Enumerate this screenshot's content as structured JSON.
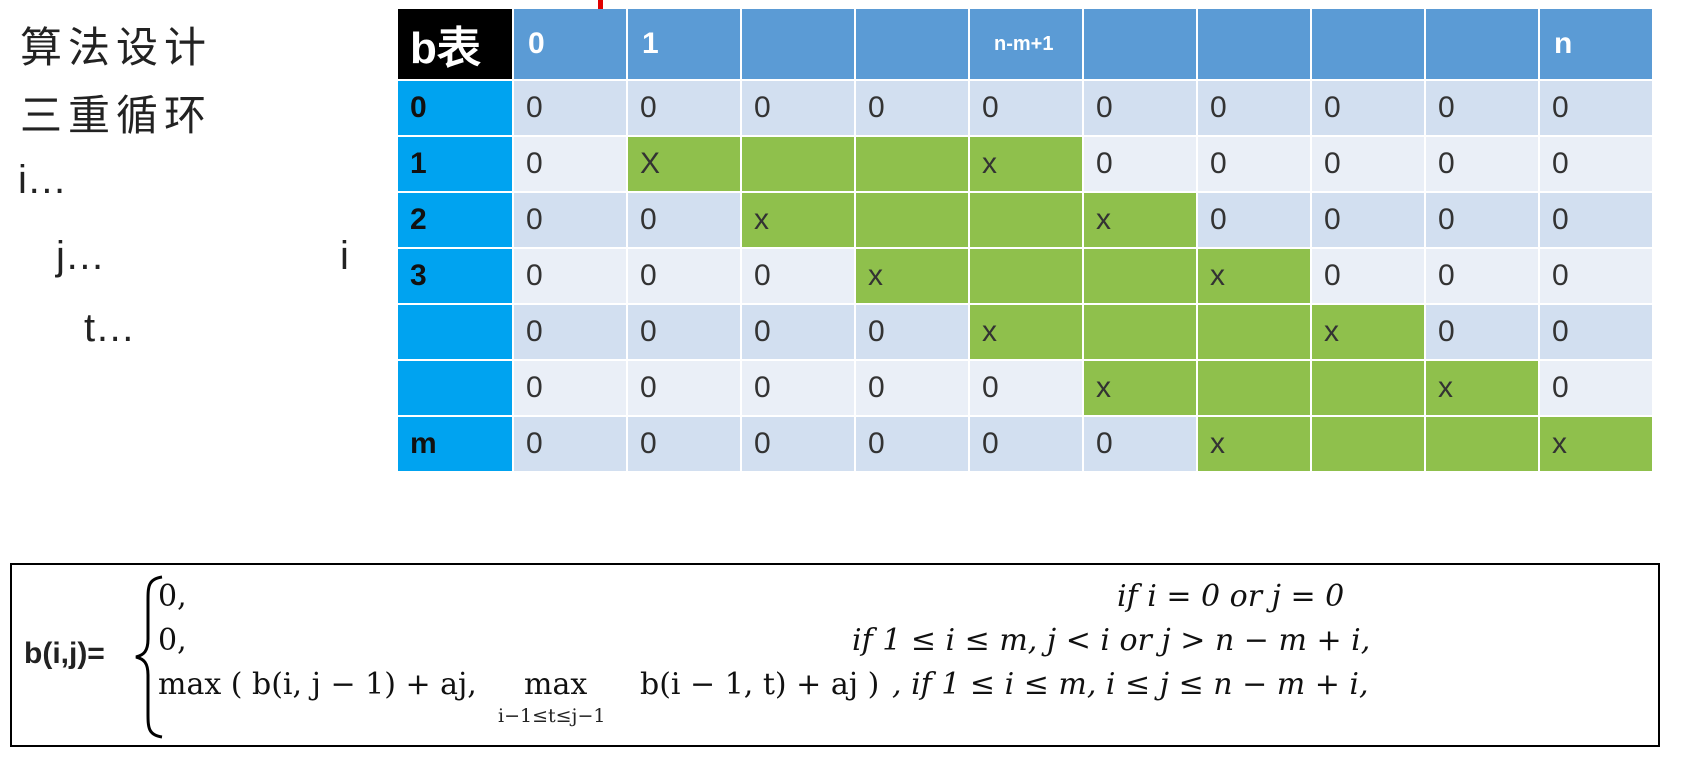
{
  "notes": {
    "line1": "算法设计",
    "line2": "三重循环",
    "line3": "i…",
    "line4": "j…",
    "line5": "t…",
    "label_i": "i"
  },
  "table": {
    "corner": "b表",
    "col_headers": [
      "0",
      "1",
      "",
      "",
      "n-m+1",
      "",
      "",
      "",
      "",
      "n"
    ],
    "rows": [
      {
        "label": "0",
        "cells": [
          "0",
          "0",
          "0",
          "0",
          "0",
          "0",
          "0",
          "0",
          "0",
          "0"
        ]
      },
      {
        "label": "1",
        "cells": [
          "0",
          "X",
          "",
          "",
          "x",
          "0",
          "0",
          "0",
          "0",
          "0"
        ]
      },
      {
        "label": "2",
        "cells": [
          "0",
          "0",
          "x",
          "",
          "",
          "x",
          "0",
          "0",
          "0",
          "0"
        ]
      },
      {
        "label": "3",
        "cells": [
          "0",
          "0",
          "0",
          "x",
          "",
          "",
          "x",
          "0",
          "0",
          "0"
        ]
      },
      {
        "label": "",
        "cells": [
          "0",
          "0",
          "0",
          "0",
          "x",
          "",
          "",
          "x",
          "0",
          "0"
        ]
      },
      {
        "label": "",
        "cells": [
          "0",
          "0",
          "0",
          "0",
          "0",
          "x",
          "",
          "",
          "x",
          "0"
        ]
      },
      {
        "label": "m",
        "cells": [
          "0",
          "0",
          "0",
          "0",
          "0",
          "0",
          "x",
          "",
          "",
          "x"
        ]
      }
    ],
    "green_cells": [
      [
        1,
        1
      ],
      [
        1,
        2
      ],
      [
        1,
        3
      ],
      [
        1,
        4
      ],
      [
        2,
        2
      ],
      [
        2,
        3
      ],
      [
        2,
        4
      ],
      [
        2,
        5
      ],
      [
        3,
        3
      ],
      [
        3,
        4
      ],
      [
        3,
        5
      ],
      [
        3,
        6
      ],
      [
        4,
        4
      ],
      [
        4,
        5
      ],
      [
        4,
        6
      ],
      [
        4,
        7
      ],
      [
        5,
        5
      ],
      [
        5,
        6
      ],
      [
        5,
        7
      ],
      [
        5,
        8
      ],
      [
        6,
        6
      ],
      [
        6,
        7
      ],
      [
        6,
        8
      ],
      [
        6,
        9
      ]
    ],
    "colors": {
      "corner_bg": "#000000",
      "header_bg": "#5b9bd5",
      "row_header_bg": "#00a3f0",
      "row_odd_bg": "#d2dff0",
      "row_even_bg": "#eaeff7",
      "highlight_bg": "#8fc04c"
    }
  },
  "formula": {
    "lhs": "b(i,j)=",
    "case1_value": "0,",
    "case1_cond": "if   i = 0     or    j = 0",
    "case2_value": "0,",
    "case2_cond": "if  1 ≤ i ≤ m,   j < i  or  j > n − m + i,",
    "case3_max_open": "max ( b(i, j − 1) + aj,",
    "case3_inner_max": "max",
    "case3_inner_sub": "i−1≤t≤j−1",
    "case3_inner_expr": "b(i − 1, t) + aj )",
    "case3_cond": ", if  1 ≤ i ≤ m,   i ≤ j ≤ n − m + i,"
  }
}
